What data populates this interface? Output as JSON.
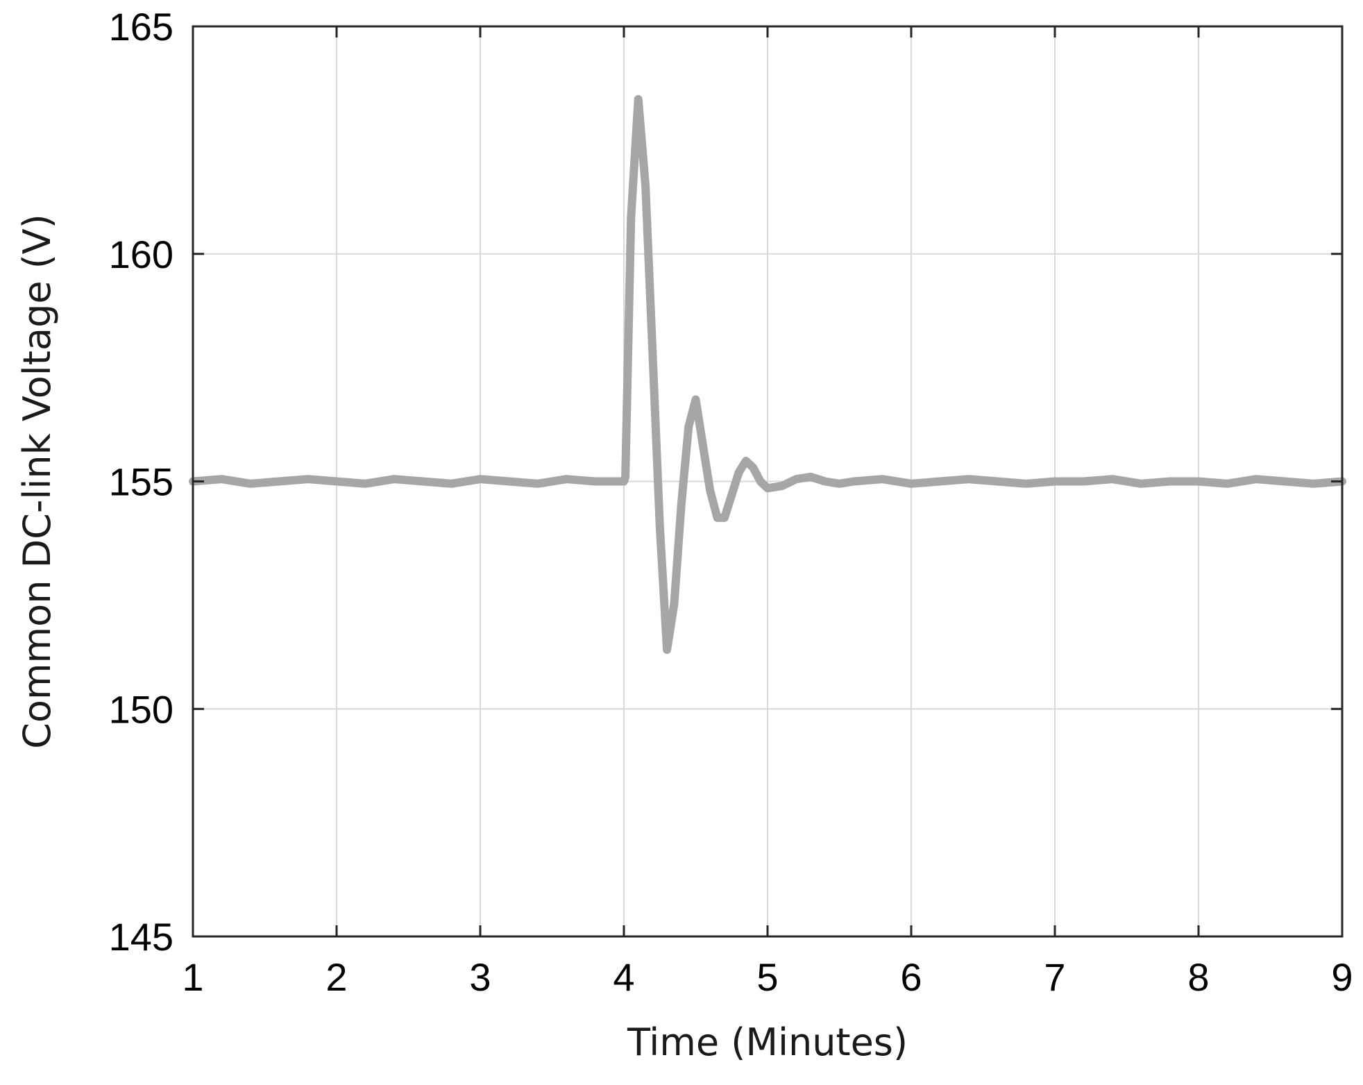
{
  "chart_data": {
    "type": "line",
    "title": "",
    "xlabel": "Time (Minutes)",
    "ylabel": "Common DC-link Voltage (V)",
    "xlim": [
      1,
      9
    ],
    "ylim": [
      145,
      165
    ],
    "xticks": [
      1,
      2,
      3,
      4,
      5,
      6,
      7,
      8,
      9
    ],
    "yticks": [
      145,
      150,
      155,
      160,
      165
    ],
    "xtick_labels": [
      "1",
      "2",
      "3",
      "4",
      "5",
      "6",
      "7",
      "8",
      "9"
    ],
    "ytick_labels": [
      "145",
      "150",
      "155",
      "160",
      "165"
    ],
    "grid": true,
    "legend": "none",
    "series": [
      {
        "color": "#a6a6a6",
        "x": [
          1.0,
          1.2,
          1.4,
          1.6,
          1.8,
          2.0,
          2.2,
          2.4,
          2.6,
          2.8,
          3.0,
          3.2,
          3.4,
          3.6,
          3.8,
          4.0,
          4.01,
          4.05,
          4.1,
          4.15,
          4.2,
          4.25,
          4.3,
          4.35,
          4.4,
          4.45,
          4.5,
          4.55,
          4.6,
          4.65,
          4.7,
          4.75,
          4.8,
          4.85,
          4.9,
          4.95,
          5.0,
          5.1,
          5.2,
          5.3,
          5.4,
          5.5,
          5.6,
          5.8,
          6.0,
          6.2,
          6.4,
          6.6,
          6.8,
          7.0,
          7.2,
          7.4,
          7.6,
          7.8,
          8.0,
          8.2,
          8.4,
          8.6,
          8.8,
          9.0
        ],
        "y": [
          155.0,
          155.05,
          154.95,
          155.0,
          155.05,
          155.0,
          154.95,
          155.05,
          155.0,
          154.95,
          155.05,
          155.0,
          154.95,
          155.05,
          155.0,
          155.0,
          155.1,
          160.8,
          163.4,
          161.5,
          157.8,
          154.0,
          151.3,
          152.3,
          154.5,
          156.2,
          156.8,
          155.8,
          154.8,
          154.2,
          154.2,
          154.7,
          155.2,
          155.45,
          155.3,
          155.0,
          154.85,
          154.9,
          155.05,
          155.1,
          155.0,
          154.95,
          155.0,
          155.05,
          154.95,
          155.0,
          155.05,
          155.0,
          154.95,
          155.0,
          155.0,
          155.05,
          154.95,
          155.0,
          155.0,
          154.95,
          155.05,
          155.0,
          154.95,
          155.0
        ]
      }
    ]
  }
}
